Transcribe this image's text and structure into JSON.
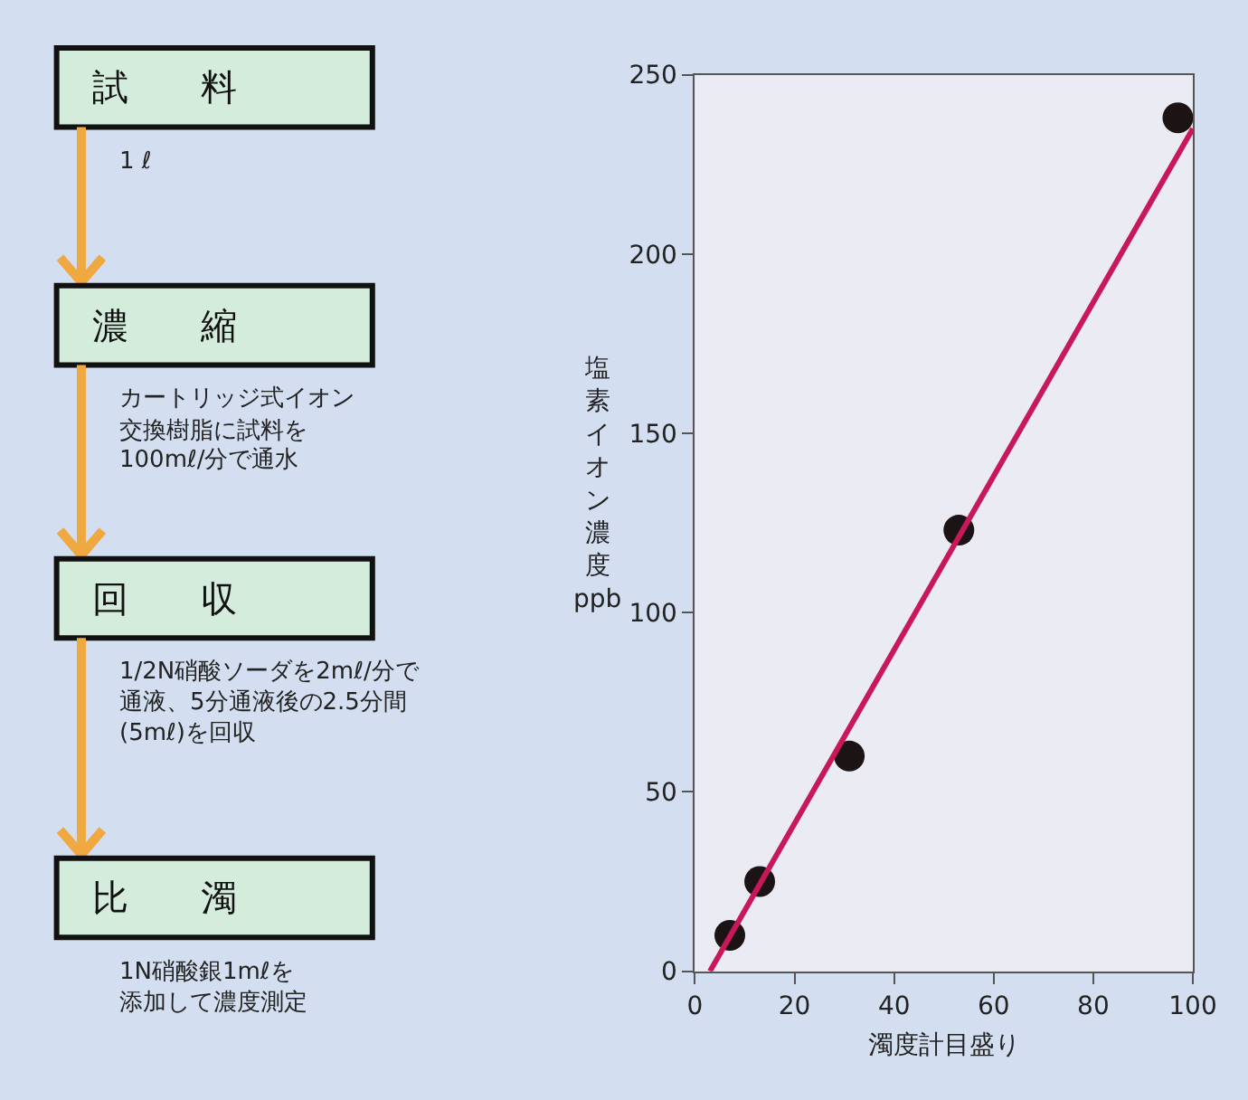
{
  "chart_data": [
    {
      "type": "other",
      "annotations": [
        "試　　料",
        "1 ℓ",
        "濃　　縮",
        "カートリッジ式イオン",
        "交換樹脂に試料を",
        "100mℓ/分で通水",
        "回　　収",
        "1/2N硝酸ソーダを2mℓ/分で",
        "通液、5分通液後の2.5分間",
        "(5mℓ)を回収",
        "比　　濁",
        "1N硝酸銀1mℓを",
        "添加して濃度測定"
      ]
    },
    {
      "type": "scatter",
      "xlabel": "濁度計目盛り",
      "ylabel": "塩素イオン濃度\nppb",
      "xlim": [
        0,
        100
      ],
      "xticks": [
        0,
        20,
        40,
        60,
        80,
        100
      ],
      "ylim": [
        0,
        250
      ],
      "yticks": [
        0,
        50,
        100,
        150,
        200,
        250
      ],
      "grid": false,
      "marker": "circle",
      "series": [
        {
          "color": "#1c1414",
          "x": [
            7,
            13,
            31,
            53,
            97
          ],
          "values": [
            10,
            25,
            60,
            123,
            238
          ]
        },
        {
          "type": "line",
          "color": "#c8185a",
          "line_style": "solid",
          "marker": "none",
          "x": [
            3,
            100
          ],
          "values": [
            0,
            235
          ]
        }
      ]
    }
  ]
}
